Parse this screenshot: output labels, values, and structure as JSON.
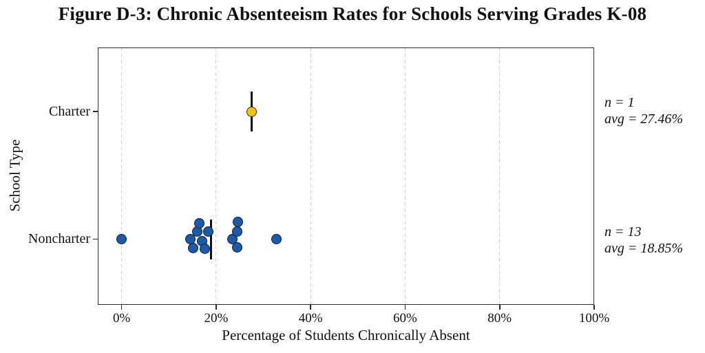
{
  "chart_data": {
    "type": "scatter",
    "title": "Figure D-3: Chronic Absenteeism Rates for Schools Serving Grades K-08",
    "xlabel": "Percentage of Students Chronically Absent",
    "ylabel": "School Type",
    "xlim": [
      -5.05,
      100
    ],
    "x_ticks": [
      {
        "label": "0%",
        "value": 0
      },
      {
        "label": "20%",
        "value": 20
      },
      {
        "label": "40%",
        "value": 40
      },
      {
        "label": "60%",
        "value": 60
      },
      {
        "label": "80%",
        "value": 80
      },
      {
        "label": "100%",
        "value": 100
      }
    ],
    "grid": "vertical-dashed",
    "legend": "none",
    "categories": [
      "Charter",
      "Noncharter"
    ],
    "series": [
      {
        "name": "Charter",
        "n": 1,
        "avg": 27.46,
        "marker_color": "#F5C211",
        "annotation": [
          "n = 1",
          "avg = 27.46%"
        ],
        "points": [
          {
            "x": 27.46,
            "dy": 0
          }
        ]
      },
      {
        "name": "Noncharter",
        "n": 13,
        "avg": 18.85,
        "marker_color": "#1A5AA8",
        "annotation": [
          "n = 13",
          "avg = 18.85%"
        ],
        "points": [
          {
            "x": 0.0,
            "dy": 0
          },
          {
            "x": 14.6,
            "dy": 0
          },
          {
            "x": 15.2,
            "dy": 13
          },
          {
            "x": 16.0,
            "dy": -11
          },
          {
            "x": 16.5,
            "dy": -23
          },
          {
            "x": 17.0,
            "dy": 3
          },
          {
            "x": 17.6,
            "dy": 14
          },
          {
            "x": 18.3,
            "dy": -11
          },
          {
            "x": 23.4,
            "dy": 0
          },
          {
            "x": 24.4,
            "dy": -11
          },
          {
            "x": 24.4,
            "dy": 12
          },
          {
            "x": 24.6,
            "dy": -25
          },
          {
            "x": 32.8,
            "dy": 0
          }
        ]
      }
    ],
    "colors": {
      "charter_point": "#F5C211",
      "noncharter_point": "#1A5AA8",
      "mean_line": "#111111",
      "gridline": "#d4d4d4",
      "axis": "#2a2a2a"
    }
  }
}
